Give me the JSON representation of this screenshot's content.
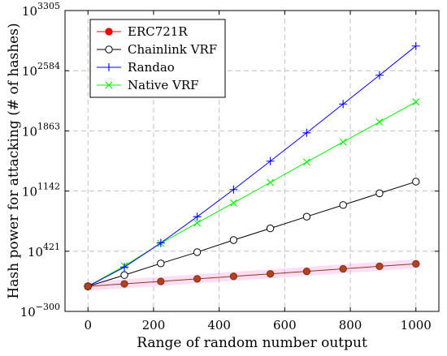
{
  "chart_data": {
    "type": "line",
    "title": "",
    "xlabel": "Range of random number output",
    "ylabel": "Hash power for attacking (# of hashes)",
    "x": [
      0,
      111,
      222,
      333,
      444,
      556,
      667,
      778,
      889,
      1000
    ],
    "xlim": [
      -70,
      1070
    ],
    "ylim_exponent": [
      -300,
      3305
    ],
    "y_scale": "log10",
    "x_ticks": [
      {
        "value": 0,
        "label": "0"
      },
      {
        "value": 200,
        "label": "200"
      },
      {
        "value": 400,
        "label": "400"
      },
      {
        "value": 600,
        "label": "600"
      },
      {
        "value": 800,
        "label": "800"
      },
      {
        "value": 1000,
        "label": "1000"
      }
    ],
    "y_ticks": [
      {
        "exp": -300,
        "base": "10",
        "sup": "−300"
      },
      {
        "exp": 421,
        "base": "10",
        "sup": "421"
      },
      {
        "exp": 1142,
        "base": "10",
        "sup": "1142"
      },
      {
        "exp": 1863,
        "base": "10",
        "sup": "1863"
      },
      {
        "exp": 2584,
        "base": "10",
        "sup": "2584"
      },
      {
        "exp": 3305,
        "base": "10",
        "sup": "3305"
      }
    ],
    "grid": true,
    "legend_position": "top-left",
    "series": [
      {
        "name": "ERC721R",
        "color": "#ff0000",
        "line_color": "#8b3a1a",
        "marker": "filled-circle",
        "y_exponent": [
          0,
          30,
          60,
          90,
          120,
          150,
          180,
          210,
          240,
          270
        ]
      },
      {
        "name": "Chainlink VRF",
        "color": "#000000",
        "line_color": "#000000",
        "marker": "open-circle",
        "y_exponent": [
          0,
          135,
          275,
          410,
          555,
          695,
          835,
          975,
          1115,
          1255
        ]
      },
      {
        "name": "Randao",
        "color": "#0000ff",
        "line_color": "#0000ff",
        "marker": "plus",
        "y_exponent": [
          0,
          230,
          520,
          835,
          1160,
          1500,
          1840,
          2185,
          2530,
          2880
        ]
      },
      {
        "name": "Native VRF",
        "color": "#00ee00",
        "line_color": "#00ee00",
        "marker": "cross",
        "y_exponent": [
          0,
          245,
          515,
          760,
          1000,
          1245,
          1490,
          1730,
          1970,
          2210
        ]
      }
    ]
  }
}
